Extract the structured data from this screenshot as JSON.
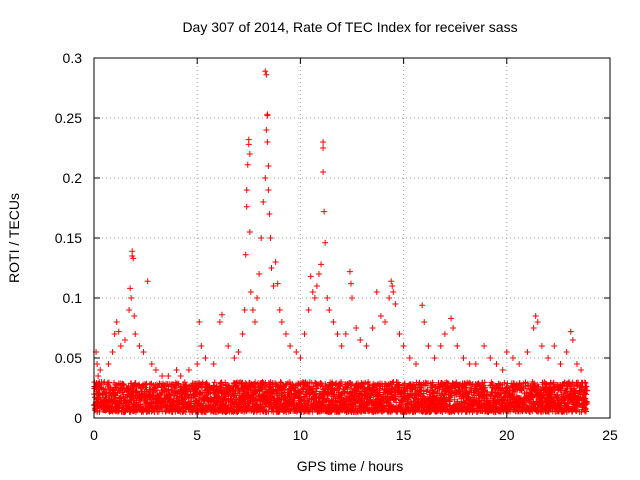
{
  "chart_data": {
    "type": "scatter",
    "title": "Day 307 of 2014, Rate Of TEC Index for receiver sass",
    "xlabel": "GPS time / hours",
    "ylabel": "ROTI / TECUs",
    "xlim": [
      0,
      25
    ],
    "ylim": [
      0,
      0.3
    ],
    "xticks": [
      0,
      5,
      10,
      15,
      20,
      25
    ],
    "xtick_labels": [
      "0",
      "5",
      "10",
      "15",
      "20",
      "25"
    ],
    "yticks": [
      0,
      0.05,
      0.1,
      0.15,
      0.2,
      0.25,
      0.3
    ],
    "ytick_labels": [
      "0",
      "0.05",
      "0.1",
      "0.15",
      "0.2",
      "0.25",
      "0.3"
    ],
    "grid": true,
    "marker": "+",
    "color": "#ff0000",
    "x_range_observed": [
      0,
      23.9
    ],
    "base_band": [
      0.005,
      0.03
    ],
    "series": [
      {
        "name": "ROTI",
        "points": [
          [
            0.1,
            0.055
          ],
          [
            0.15,
            0.045
          ],
          [
            0.2,
            0.035
          ],
          [
            0.3,
            0.04
          ],
          [
            0.5,
            0.03
          ],
          [
            0.7,
            0.045
          ],
          [
            0.9,
            0.055
          ],
          [
            1.0,
            0.07
          ],
          [
            1.1,
            0.08
          ],
          [
            1.2,
            0.072
          ],
          [
            1.3,
            0.06
          ],
          [
            1.5,
            0.065
          ],
          [
            1.7,
            0.09
          ],
          [
            1.75,
            0.108
          ],
          [
            1.8,
            0.1
          ],
          [
            1.85,
            0.139
          ],
          [
            1.85,
            0.135
          ],
          [
            1.9,
            0.133
          ],
          [
            1.95,
            0.085
          ],
          [
            2.0,
            0.07
          ],
          [
            2.2,
            0.06
          ],
          [
            2.4,
            0.055
          ],
          [
            2.6,
            0.114
          ],
          [
            2.8,
            0.045
          ],
          [
            3.0,
            0.04
          ],
          [
            3.3,
            0.035
          ],
          [
            3.6,
            0.035
          ],
          [
            4.0,
            0.04
          ],
          [
            4.2,
            0.035
          ],
          [
            4.6,
            0.04
          ],
          [
            5.0,
            0.045
          ],
          [
            5.1,
            0.08
          ],
          [
            5.2,
            0.06
          ],
          [
            5.4,
            0.05
          ],
          [
            5.8,
            0.045
          ],
          [
            6.1,
            0.08
          ],
          [
            6.2,
            0.086
          ],
          [
            6.5,
            0.06
          ],
          [
            6.8,
            0.05
          ],
          [
            7.0,
            0.055
          ],
          [
            7.2,
            0.07
          ],
          [
            7.3,
            0.09
          ],
          [
            7.35,
            0.136
          ],
          [
            7.4,
            0.176
          ],
          [
            7.4,
            0.19
          ],
          [
            7.45,
            0.211
          ],
          [
            7.5,
            0.232
          ],
          [
            7.5,
            0.228
          ],
          [
            7.55,
            0.22
          ],
          [
            7.55,
            0.155
          ],
          [
            7.6,
            0.105
          ],
          [
            7.7,
            0.09
          ],
          [
            7.8,
            0.08
          ],
          [
            7.9,
            0.1
          ],
          [
            8.0,
            0.12
          ],
          [
            8.1,
            0.15
          ],
          [
            8.2,
            0.18
          ],
          [
            8.3,
            0.2
          ],
          [
            8.35,
            0.24
          ],
          [
            8.4,
            0.253
          ],
          [
            8.4,
            0.252
          ],
          [
            8.4,
            0.23
          ],
          [
            8.45,
            0.21
          ],
          [
            8.45,
            0.19
          ],
          [
            8.3,
            0.289
          ],
          [
            8.35,
            0.286
          ],
          [
            8.5,
            0.17
          ],
          [
            8.55,
            0.15
          ],
          [
            8.6,
            0.125
          ],
          [
            8.7,
            0.11
          ],
          [
            8.8,
            0.13
          ],
          [
            8.9,
            0.112
          ],
          [
            9.0,
            0.09
          ],
          [
            9.1,
            0.08
          ],
          [
            9.3,
            0.07
          ],
          [
            9.5,
            0.06
          ],
          [
            9.8,
            0.055
          ],
          [
            10.0,
            0.05
          ],
          [
            10.2,
            0.07
          ],
          [
            10.4,
            0.09
          ],
          [
            10.5,
            0.118
          ],
          [
            10.6,
            0.105
          ],
          [
            10.7,
            0.1
          ],
          [
            10.8,
            0.11
          ],
          [
            10.9,
            0.12
          ],
          [
            11.0,
            0.128
          ],
          [
            11.1,
            0.23
          ],
          [
            11.1,
            0.225
          ],
          [
            11.1,
            0.205
          ],
          [
            11.15,
            0.172
          ],
          [
            11.2,
            0.146
          ],
          [
            11.3,
            0.1
          ],
          [
            11.4,
            0.09
          ],
          [
            11.6,
            0.08
          ],
          [
            11.8,
            0.07
          ],
          [
            12.0,
            0.06
          ],
          [
            12.2,
            0.07
          ],
          [
            12.4,
            0.122
          ],
          [
            12.45,
            0.112
          ],
          [
            12.5,
            0.1
          ],
          [
            12.7,
            0.075
          ],
          [
            12.9,
            0.065
          ],
          [
            13.2,
            0.06
          ],
          [
            13.5,
            0.075
          ],
          [
            13.7,
            0.105
          ],
          [
            13.9,
            0.085
          ],
          [
            14.1,
            0.08
          ],
          [
            14.3,
            0.1
          ],
          [
            14.4,
            0.114
          ],
          [
            14.45,
            0.11
          ],
          [
            14.5,
            0.105
          ],
          [
            14.6,
            0.095
          ],
          [
            14.8,
            0.07
          ],
          [
            15.0,
            0.06
          ],
          [
            15.3,
            0.05
          ],
          [
            15.6,
            0.045
          ],
          [
            15.9,
            0.094
          ],
          [
            16.0,
            0.08
          ],
          [
            16.2,
            0.06
          ],
          [
            16.5,
            0.05
          ],
          [
            16.8,
            0.06
          ],
          [
            17.0,
            0.07
          ],
          [
            17.3,
            0.083
          ],
          [
            17.4,
            0.075
          ],
          [
            17.6,
            0.06
          ],
          [
            17.9,
            0.05
          ],
          [
            18.2,
            0.045
          ],
          [
            18.5,
            0.045
          ],
          [
            18.9,
            0.06
          ],
          [
            19.2,
            0.05
          ],
          [
            19.5,
            0.045
          ],
          [
            19.8,
            0.04
          ],
          [
            20.0,
            0.055
          ],
          [
            20.3,
            0.05
          ],
          [
            20.6,
            0.045
          ],
          [
            21.0,
            0.055
          ],
          [
            21.3,
            0.075
          ],
          [
            21.4,
            0.085
          ],
          [
            21.5,
            0.08
          ],
          [
            21.7,
            0.06
          ],
          [
            22.0,
            0.05
          ],
          [
            22.3,
            0.06
          ],
          [
            22.6,
            0.045
          ],
          [
            22.9,
            0.055
          ],
          [
            23.1,
            0.072
          ],
          [
            23.2,
            0.065
          ],
          [
            23.4,
            0.045
          ],
          [
            23.6,
            0.04
          ],
          [
            23.8,
            0.025
          ]
        ]
      }
    ]
  }
}
